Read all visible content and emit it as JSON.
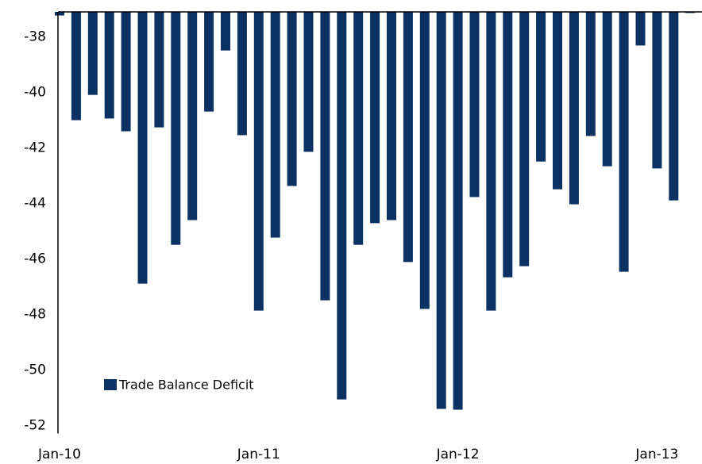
{
  "chart_data": {
    "type": "bar",
    "categories": [
      "Jan-10",
      null,
      null,
      null,
      null,
      null,
      null,
      null,
      null,
      null,
      null,
      null,
      "Jan-11",
      null,
      null,
      null,
      null,
      null,
      null,
      null,
      null,
      null,
      null,
      null,
      "Jan-12",
      null,
      null,
      null,
      null,
      null,
      null,
      null,
      null,
      null,
      null,
      null,
      "Jan-13",
      null,
      null
    ],
    "series": [
      {
        "name": "Trade Balance Deficit",
        "color": "#0b3263",
        "values": [
          -37.23,
          -41.0,
          -40.09,
          -40.94,
          -41.4,
          -46.89,
          -41.26,
          -45.49,
          -44.6,
          -40.69,
          -38.49,
          -41.54,
          -47.86,
          -45.23,
          -43.37,
          -42.14,
          -47.49,
          -51.06,
          -45.49,
          -44.71,
          -44.6,
          -46.11,
          -47.8,
          -51.4,
          -51.43,
          -43.77,
          -47.86,
          -46.66,
          -46.26,
          -42.49,
          -43.49,
          -44.03,
          -41.57,
          -42.66,
          -46.46,
          -38.31,
          -42.74,
          -43.89,
          -37.14
        ]
      }
    ],
    "ylim": [
      -52,
      -37.1
    ],
    "yticks": [
      -52,
      -50,
      -48,
      -46,
      -44,
      -42,
      -40,
      -38
    ],
    "grid": false
  }
}
